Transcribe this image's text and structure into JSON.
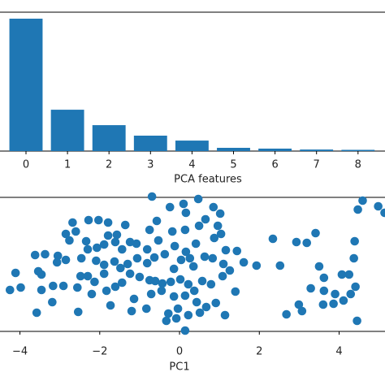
{
  "chart_data": [
    {
      "type": "bar",
      "x_label": "PCA features",
      "categories": [
        "0",
        "1",
        "2",
        "3",
        "4",
        "5",
        "6",
        "7",
        "8"
      ],
      "values": [
        4.29,
        1.34,
        0.84,
        0.5,
        0.34,
        0.105,
        0.08,
        0.05,
        0.04
      ],
      "color": "#1f77b4",
      "ylim": [
        0,
        4.5
      ]
    },
    {
      "type": "scatter",
      "x_label": "PC1",
      "color": "#1f77b4",
      "xlim": [
        -4.5,
        5.15
      ],
      "ylim": [
        0,
        165
      ],
      "xticks": [
        {
          "value": -4,
          "label": "−4"
        },
        {
          "value": -2,
          "label": "−2"
        },
        0,
        2,
        4
      ],
      "x": [
        4.47,
        4.59,
        4.98,
        5.14,
        4.39,
        4.37,
        3.41,
        3.19,
        2.93,
        2.34,
        2.52,
        3.5,
        3.29,
        3.62,
        3.9,
        4.29,
        4.11,
        4.41,
        4.25,
        3.86,
        3.6,
        2.99,
        3.07,
        2.68,
        4.45,
        4.07,
        3.62,
        -0.69,
        -0.24,
        0.1,
        0.47,
        0.16,
        0.85,
        1.02,
        0.65,
        0.87,
        1.04,
        0.49,
        0.14,
        -0.18,
        -0.57,
        -0.75,
        -0.53,
        -0.81,
        -1.08,
        -1.06,
        -0.81,
        -0.63,
        -0.37,
        -0.12,
        0.16,
        0.41,
        0.63,
        0.83,
        1.16,
        1.44,
        1.61,
        1.93,
        1.26,
        1.08,
        0.79,
        0.57,
        0.37,
        0.22,
        0.02,
        -0.22,
        -0.43,
        -0.61,
        -0.75,
        -1.0,
        -1.24,
        -1.44,
        -1.48,
        -1.3,
        -1.14,
        -0.71,
        -0.45,
        -0.14,
        0.14,
        0.43,
        0.67,
        0.91,
        1.4,
        1.14,
        0.51,
        0.22,
        -0.04,
        -0.28,
        -0.33,
        0.14,
        -0.08,
        -0.83,
        -1.2,
        -1.73,
        -2.2,
        -1.89,
        -1.63,
        -1.89,
        -2.09,
        -2.3,
        -2.48,
        -2.56,
        -2.91,
        -3.17,
        -3.46,
        -3.98,
        -4.25,
        -4.11,
        -3.62,
        -3.37,
        -3.05,
        -2.85,
        -2.46,
        -2.3,
        -2.76,
        -2.6,
        -2.68,
        -2.28,
        -2.34,
        -2.03,
        -1.79,
        -1.79,
        -1.61,
        -1.44,
        -1.24,
        -2.07,
        -1.89,
        -2.85,
        -3.07,
        -3.54,
        -3.46,
        -3.58,
        -3.19,
        -2.54,
        -2.13,
        -1.61,
        -1.83,
        -1.36,
        -1.57,
        0.26,
        0.04,
        -0.14,
        0.35,
        1.1,
        0.96
      ],
      "values": [
        150,
        161,
        154,
        146,
        111,
        90,
        121,
        109,
        110,
        114,
        81,
        80,
        53,
        50,
        46,
        46,
        38,
        55,
        70,
        34,
        33,
        33,
        25,
        21,
        13,
        70,
        66,
        166,
        153,
        157,
        163,
        146,
        153,
        145,
        138,
        115,
        120,
        130,
        125,
        123,
        136,
        125,
        112,
        101,
        108,
        90,
        84,
        91,
        95,
        105,
        98,
        108,
        92,
        90,
        100,
        99,
        85,
        81,
        75,
        68,
        58,
        62,
        50,
        58,
        64,
        61,
        59,
        62,
        63,
        67,
        71,
        60,
        78,
        83,
        40,
        46,
        50,
        43,
        44,
        36,
        30,
        35,
        49,
        20,
        23,
        20,
        28,
        22,
        13,
        1,
        16,
        28,
        25,
        32,
        46,
        71,
        86,
        82,
        87,
        68,
        68,
        54,
        56,
        56,
        51,
        54,
        51,
        72,
        94,
        95,
        93,
        88,
        90,
        101,
        112,
        123,
        134,
        137,
        111,
        137,
        134,
        118,
        110,
        101,
        110,
        103,
        107,
        120,
        85,
        74,
        70,
        23,
        36,
        24,
        61,
        55,
        50,
        131,
        119,
        90,
        88,
        77,
        80,
        83,
        130
      ]
    }
  ]
}
